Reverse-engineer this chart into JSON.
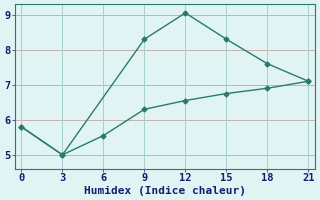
{
  "line1_x": [
    0,
    3,
    9,
    12,
    15,
    18,
    21
  ],
  "line1_y": [
    5.8,
    5.0,
    8.3,
    9.05,
    8.3,
    7.6,
    7.1
  ],
  "line2_x": [
    0,
    3,
    6,
    9,
    12,
    15,
    18,
    21
  ],
  "line2_y": [
    5.8,
    5.0,
    5.55,
    6.3,
    6.55,
    6.75,
    6.9,
    7.1
  ],
  "line_color": "#2a7a70",
  "bg_color": "#e0f4f4",
  "grid_color_h": "#c8b0b0",
  "grid_color_v": "#a8cece",
  "xlabel": "Humidex (Indice chaleur)",
  "xlim": [
    -0.5,
    21.5
  ],
  "ylim": [
    4.6,
    9.3
  ],
  "xticks": [
    0,
    3,
    6,
    9,
    12,
    15,
    18,
    21
  ],
  "yticks": [
    5,
    6,
    7,
    8,
    9
  ],
  "marker": "D",
  "markersize": 2.5,
  "linewidth": 1.0,
  "xlabel_fontsize": 8,
  "tick_fontsize": 7.5
}
